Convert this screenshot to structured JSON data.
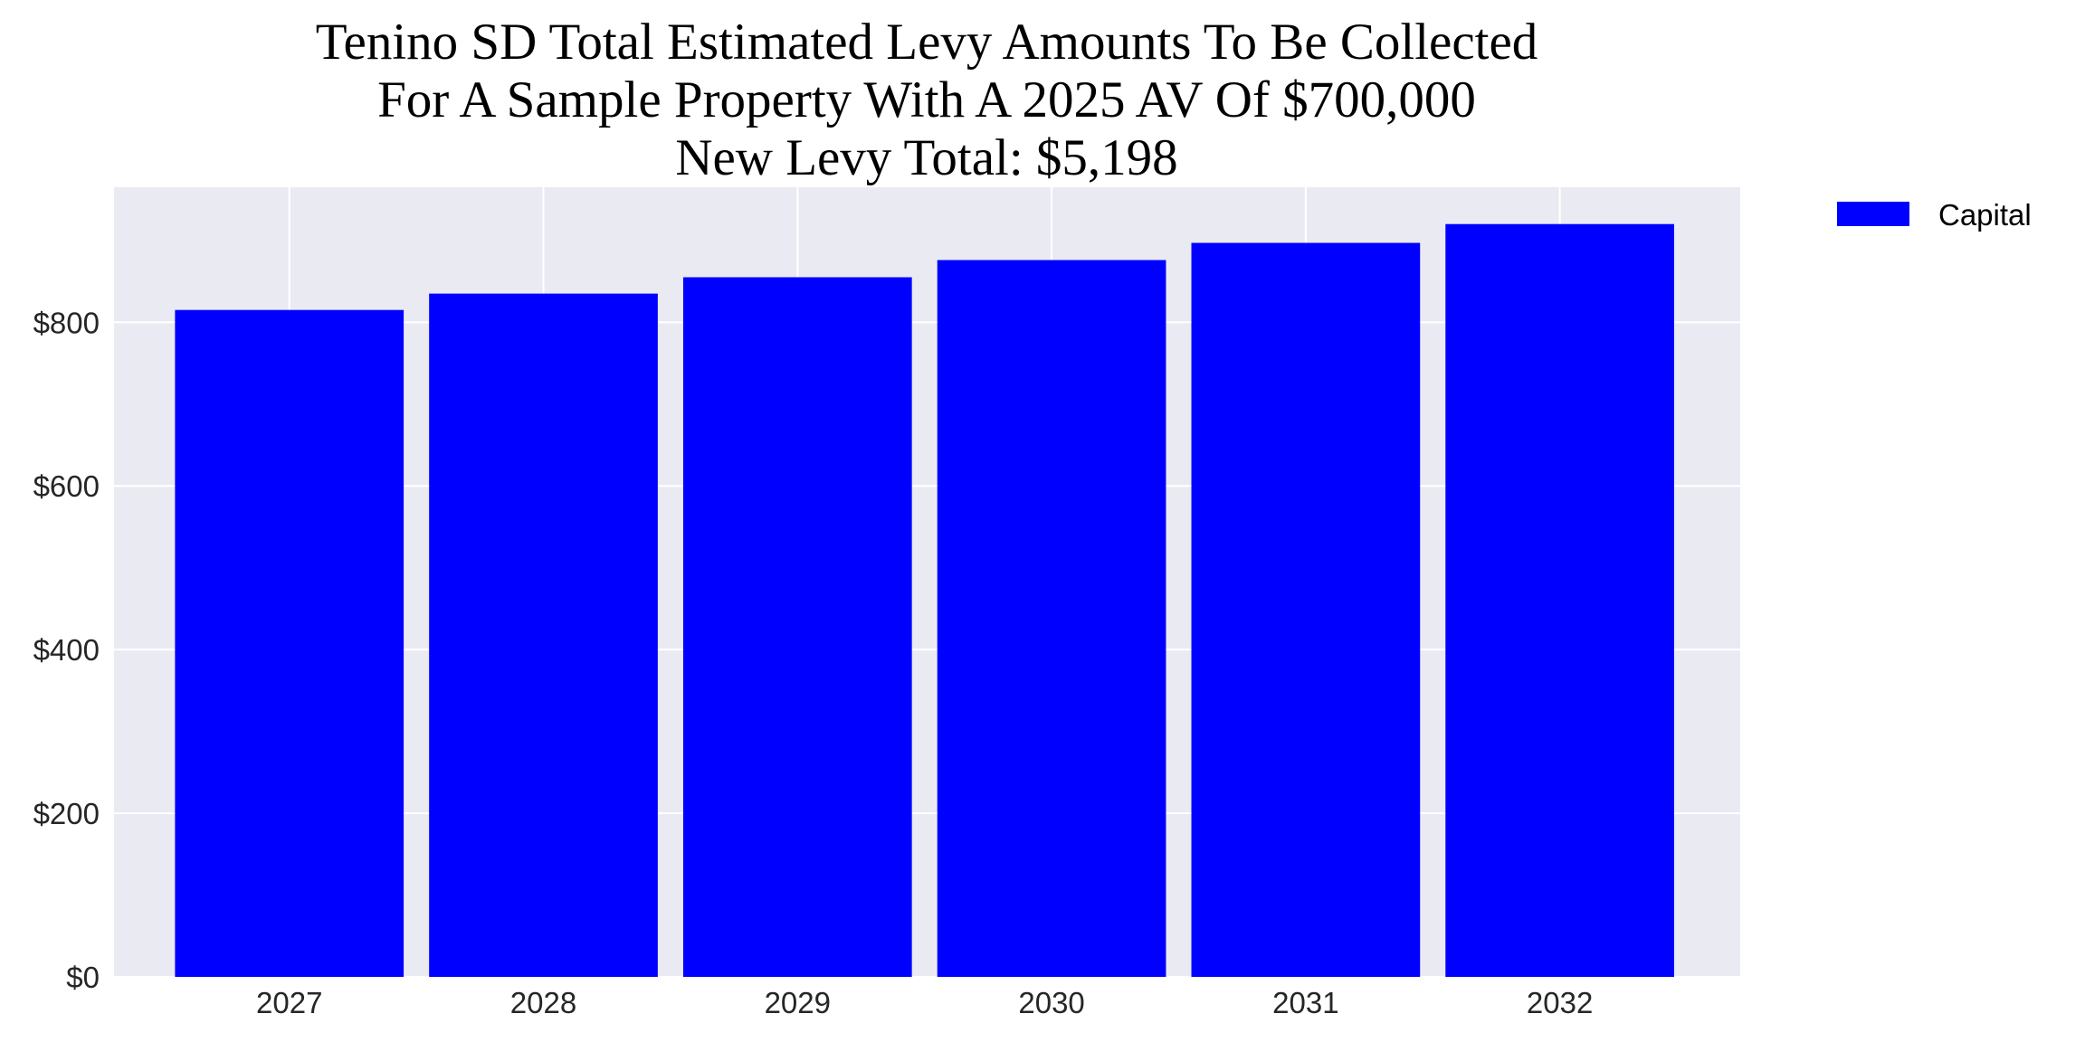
{
  "chart_data": {
    "type": "bar",
    "title_lines": [
      "Tenino SD Total Estimated Levy Amounts To Be Collected",
      "For A Sample Property With A 2025 AV Of $700,000",
      "New Levy Total: $5,198"
    ],
    "categories": [
      "2027",
      "2028",
      "2029",
      "2030",
      "2031",
      "2032"
    ],
    "series": [
      {
        "name": "Capital",
        "values": [
          815,
          835,
          855,
          876,
          897,
          920
        ],
        "color": "#0000ff"
      }
    ],
    "xlabel": "",
    "ylabel": "",
    "ylim": [
      0,
      965
    ],
    "yticks": [
      0,
      200,
      400,
      600,
      800
    ],
    "ytick_labels": [
      "$0",
      "$200",
      "$400",
      "$600",
      "$800"
    ],
    "grid": true,
    "background": "#eaeaf2",
    "legend_position": "outside-top-right"
  }
}
